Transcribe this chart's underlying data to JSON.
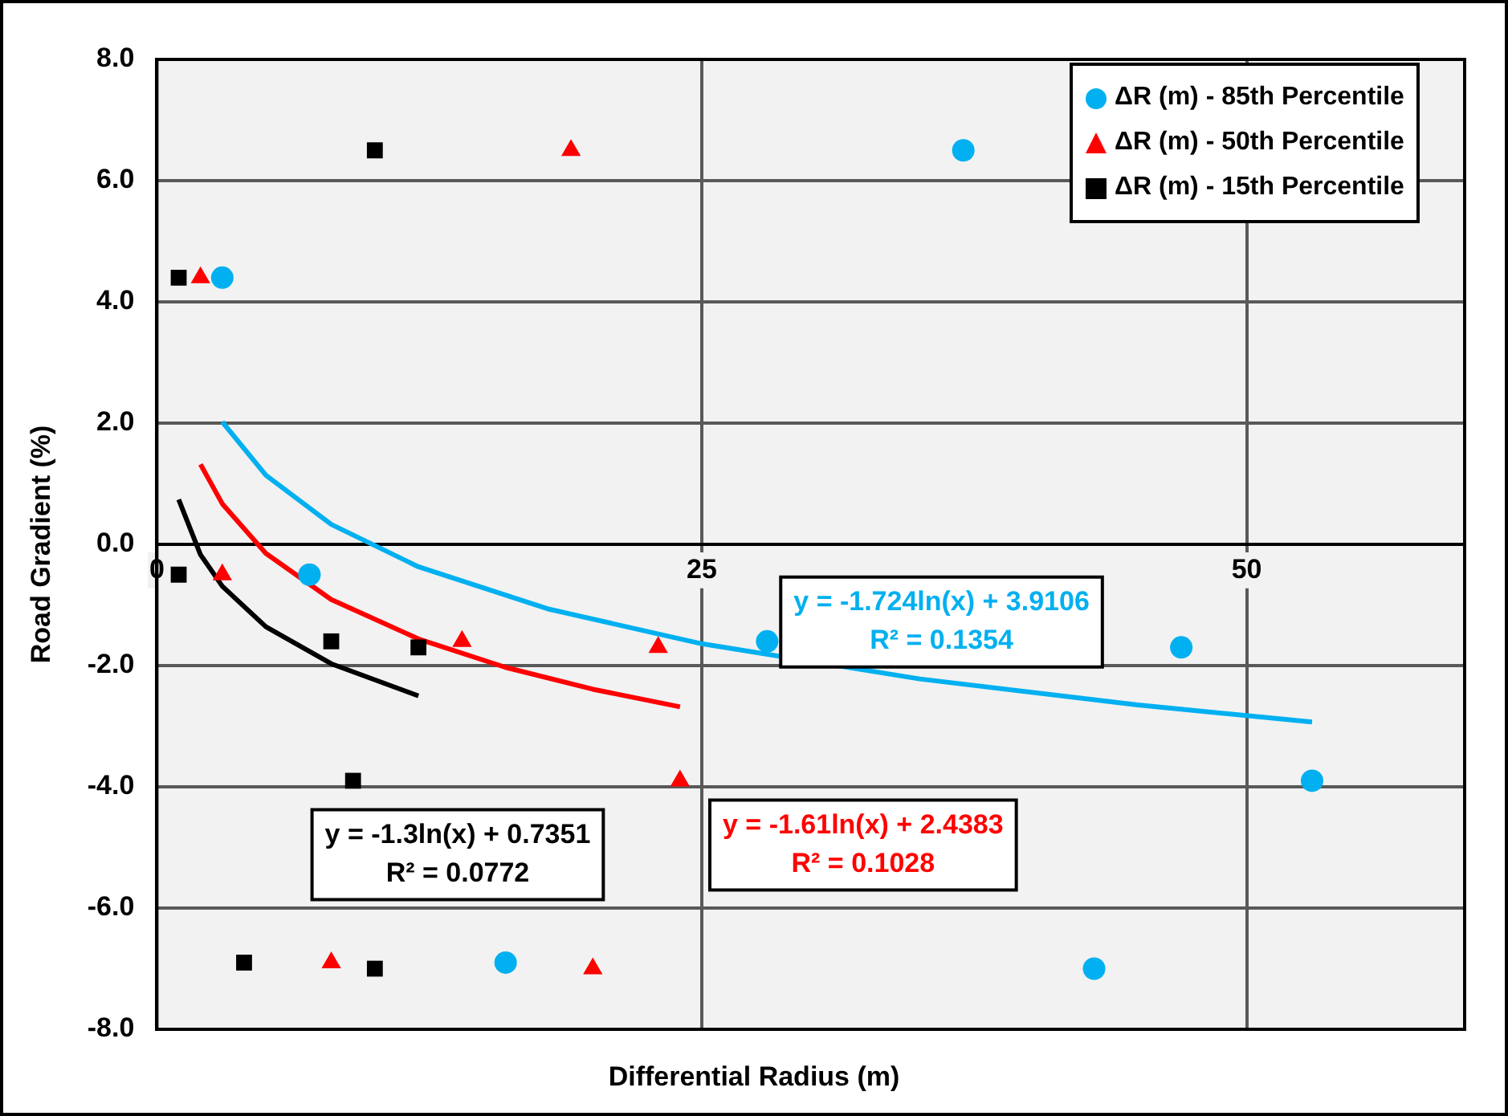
{
  "chart_data": {
    "type": "scatter",
    "xlabel": "Differential Radius (m)",
    "ylabel": "Road Gradient (%)",
    "xlim": [
      0,
      60
    ],
    "xticks": [
      0,
      25,
      50
    ],
    "ylim": [
      -8,
      8
    ],
    "yticks": [
      {
        "value": -8,
        "label": "-8.0"
      },
      {
        "value": -6,
        "label": "-6.0"
      },
      {
        "value": -4,
        "label": "-4.0"
      },
      {
        "value": -2,
        "label": "-2.0"
      },
      {
        "value": 0,
        "label": "0.0"
      },
      {
        "value": 2,
        "label": "2.0"
      },
      {
        "value": 4,
        "label": "4.0"
      },
      {
        "value": 6,
        "label": "6.0"
      },
      {
        "value": 8,
        "label": "8.0"
      }
    ],
    "grid": true,
    "legend": "top right",
    "series": [
      {
        "name": "ΔR (m) - 85th Percentile",
        "color": "#00b0f0",
        "marker": "circle",
        "x": [
          3,
          37,
          7,
          28,
          47,
          53,
          16,
          43
        ],
        "values": [
          4.4,
          6.5,
          -0.5,
          -1.6,
          -1.7,
          -3.9,
          -6.9,
          -7.0
        ]
      },
      {
        "name": "ΔR (m) - 50th Percentile",
        "color": "#ff0000",
        "marker": "triangle",
        "x": [
          2,
          19,
          3,
          14,
          23,
          24,
          8,
          20
        ],
        "values": [
          4.4,
          6.5,
          -0.5,
          -1.6,
          -1.7,
          -3.9,
          -6.9,
          -7.0
        ]
      },
      {
        "name": "ΔR (m) - 15th Percentile",
        "color": "#000000",
        "marker": "square",
        "x": [
          1,
          10,
          1,
          8,
          12,
          9,
          4,
          10
        ],
        "values": [
          4.4,
          6.5,
          -0.5,
          -1.6,
          -1.7,
          -3.9,
          -6.9,
          -7.0
        ]
      },
      {
        "type": "line",
        "color": "#00b0f0",
        "marker": "none",
        "x": [
          3,
          5,
          8,
          12,
          18,
          25,
          35,
          45,
          53
        ],
        "values": [
          2.02,
          1.14,
          0.33,
          -0.37,
          -1.07,
          -1.64,
          -2.22,
          -2.65,
          -2.93
        ]
      },
      {
        "type": "line",
        "color": "#ff0000",
        "marker": "none",
        "x": [
          2,
          3,
          5,
          8,
          12,
          16,
          20,
          24
        ],
        "values": [
          1.32,
          0.67,
          -0.15,
          -0.91,
          -1.56,
          -2.03,
          -2.39,
          -2.68
        ]
      },
      {
        "type": "line",
        "color": "#000000",
        "marker": "none",
        "x": [
          1,
          2,
          3,
          5,
          8,
          12
        ],
        "values": [
          0.74,
          -0.17,
          -0.69,
          -1.36,
          -1.97,
          -2.5
        ]
      }
    ],
    "annotations": [
      "y = -1.724ln(x) + 3.9106\nR² = 0.1354",
      "y = -1.61ln(x) + 2.4383\nR² = 0.1028",
      "y = -1.3ln(x) + 0.7351\nR² = 0.0772"
    ]
  }
}
